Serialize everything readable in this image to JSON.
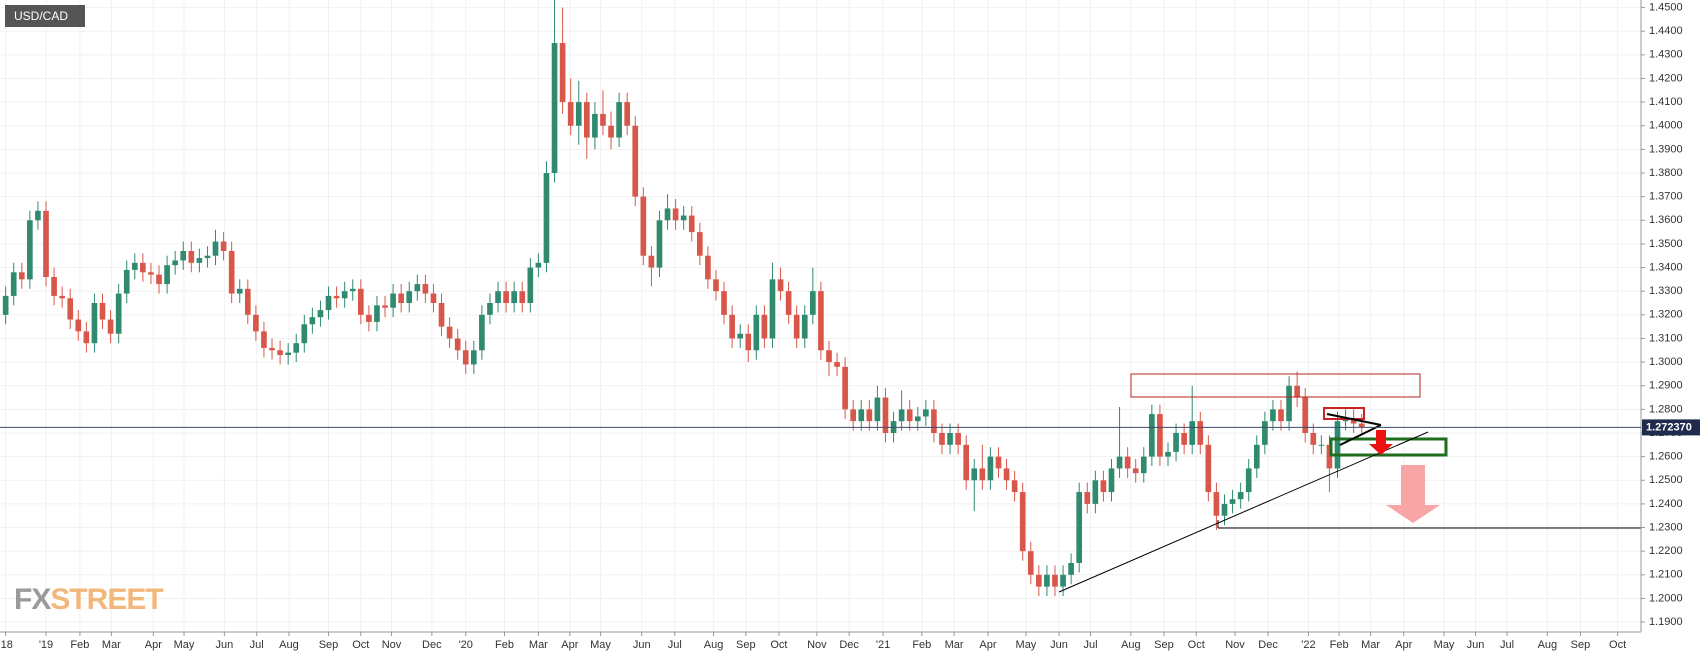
{
  "chart_data": {
    "type": "candlestick",
    "title": "USD/CAD",
    "x": [
      -5,
      -4,
      -3,
      -2,
      -1,
      0,
      1,
      2,
      3,
      4,
      5,
      6,
      7,
      8,
      9,
      10,
      11,
      12,
      13,
      14,
      15,
      16,
      17,
      18,
      19,
      20,
      21,
      22,
      23,
      24,
      25,
      26,
      27,
      28,
      29,
      30,
      31,
      32,
      33,
      34,
      35,
      36,
      37,
      38,
      39,
      40,
      41,
      42,
      43,
      44,
      45,
      46,
      47,
      48,
      49,
      50,
      51,
      52,
      53,
      54,
      55,
      56,
      57,
      58,
      59,
      60,
      61,
      62,
      63,
      64,
      65,
      66,
      67,
      68,
      69,
      70,
      71,
      72,
      73,
      74,
      75,
      76,
      77,
      78,
      79,
      80,
      81,
      82,
      83,
      84,
      85,
      86,
      87,
      88,
      89,
      90,
      91,
      92,
      93,
      94,
      95,
      96,
      97,
      98,
      99,
      100,
      101,
      102,
      103,
      104,
      105,
      106,
      107,
      108,
      109,
      110,
      111,
      112,
      113,
      114,
      115,
      116,
      117,
      118,
      119,
      120,
      121,
      122,
      123,
      124,
      125,
      126,
      127,
      128,
      129,
      130,
      131,
      132,
      133,
      134,
      135,
      136,
      137,
      138,
      139,
      140,
      141,
      142,
      143,
      144,
      145,
      146,
      147,
      148,
      149,
      150,
      151,
      152,
      153,
      154,
      155,
      156,
      157,
      158,
      159,
      160,
      161,
      162,
      163
    ],
    "open": [
      1.32,
      1.328,
      1.338,
      1.335,
      1.36,
      1.364,
      1.336,
      1.328,
      1.327,
      1.318,
      1.313,
      1.308,
      1.325,
      1.318,
      1.312,
      1.329,
      1.339,
      1.342,
      1.338,
      1.337,
      1.333,
      1.341,
      1.343,
      1.347,
      1.342,
      1.344,
      1.345,
      1.351,
      1.347,
      1.329,
      1.331,
      1.32,
      1.313,
      1.306,
      1.305,
      1.303,
      1.304,
      1.308,
      1.316,
      1.319,
      1.322,
      1.328,
      1.327,
      1.33,
      1.331,
      1.32,
      1.317,
      1.324,
      1.323,
      1.329,
      1.325,
      1.33,
      1.333,
      1.329,
      1.325,
      1.315,
      1.31,
      1.305,
      1.299,
      1.305,
      1.32,
      1.325,
      1.33,
      1.325,
      1.33,
      1.325,
      1.34,
      1.342,
      1.38,
      1.435,
      1.41,
      1.4,
      1.41,
      1.395,
      1.405,
      1.4,
      1.395,
      1.41,
      1.4,
      1.37,
      1.345,
      1.34,
      1.36,
      1.365,
      1.36,
      1.362,
      1.355,
      1.345,
      1.335,
      1.33,
      1.32,
      1.31,
      1.312,
      1.305,
      1.32,
      1.31,
      1.335,
      1.33,
      1.32,
      1.31,
      1.32,
      1.33,
      1.305,
      1.3,
      1.298,
      1.28,
      1.275,
      1.28,
      1.275,
      1.285,
      1.27,
      1.275,
      1.28,
      1.275,
      1.277,
      1.28,
      1.27,
      1.265,
      1.27,
      1.265,
      1.25,
      1.255,
      1.25,
      1.26,
      1.255,
      1.25,
      1.245,
      1.22,
      1.21,
      1.205,
      1.21,
      1.205,
      1.21,
      1.215,
      1.245,
      1.24,
      1.25,
      1.245,
      1.255,
      1.26,
      1.255,
      1.253,
      1.26,
      1.278,
      1.26,
      1.262,
      1.27,
      1.265,
      1.275,
      1.265,
      1.245,
      1.235,
      1.24,
      1.242,
      1.245,
      1.255,
      1.265,
      1.275,
      1.28,
      1.275,
      1.29,
      1.285,
      1.27,
      1.265,
      1.265,
      1.255,
      1.275,
      1.276,
      1.274
    ],
    "high": [
      1.332,
      1.342,
      1.342,
      1.364,
      1.368,
      1.368,
      1.34,
      1.332,
      1.331,
      1.322,
      1.317,
      1.329,
      1.329,
      1.322,
      1.333,
      1.343,
      1.346,
      1.346,
      1.342,
      1.341,
      1.345,
      1.347,
      1.351,
      1.351,
      1.348,
      1.349,
      1.356,
      1.355,
      1.351,
      1.335,
      1.335,
      1.324,
      1.317,
      1.31,
      1.309,
      1.308,
      1.312,
      1.32,
      1.323,
      1.326,
      1.332,
      1.332,
      1.334,
      1.335,
      1.335,
      1.324,
      1.328,
      1.328,
      1.333,
      1.333,
      1.334,
      1.337,
      1.337,
      1.333,
      1.329,
      1.319,
      1.314,
      1.309,
      1.309,
      1.324,
      1.329,
      1.334,
      1.334,
      1.334,
      1.334,
      1.344,
      1.346,
      1.385,
      1.466,
      1.45,
      1.42,
      1.419,
      1.414,
      1.41,
      1.415,
      1.406,
      1.414,
      1.414,
      1.404,
      1.374,
      1.349,
      1.364,
      1.371,
      1.369,
      1.366,
      1.366,
      1.359,
      1.349,
      1.339,
      1.334,
      1.324,
      1.316,
      1.316,
      1.324,
      1.324,
      1.342,
      1.34,
      1.334,
      1.324,
      1.324,
      1.34,
      1.334,
      1.309,
      1.304,
      1.302,
      1.284,
      1.284,
      1.284,
      1.29,
      1.289,
      1.279,
      1.288,
      1.284,
      1.281,
      1.284,
      1.284,
      1.274,
      1.274,
      1.274,
      1.269,
      1.259,
      1.265,
      1.264,
      1.264,
      1.259,
      1.254,
      1.249,
      1.224,
      1.214,
      1.214,
      1.214,
      1.214,
      1.219,
      1.249,
      1.249,
      1.254,
      1.254,
      1.259,
      1.281,
      1.264,
      1.259,
      1.264,
      1.282,
      1.282,
      1.266,
      1.274,
      1.274,
      1.29,
      1.279,
      1.269,
      1.249,
      1.244,
      1.246,
      1.249,
      1.259,
      1.269,
      1.279,
      1.284,
      1.284,
      1.294,
      1.296,
      1.289,
      1.274,
      1.269,
      1.269,
      1.279,
      1.28,
      1.28,
      1.278
    ],
    "low": [
      1.316,
      1.324,
      1.331,
      1.331,
      1.356,
      1.332,
      1.324,
      1.323,
      1.314,
      1.309,
      1.304,
      1.304,
      1.314,
      1.308,
      1.308,
      1.325,
      1.335,
      1.334,
      1.333,
      1.329,
      1.329,
      1.337,
      1.339,
      1.338,
      1.338,
      1.34,
      1.341,
      1.343,
      1.325,
      1.325,
      1.316,
      1.309,
      1.302,
      1.301,
      1.299,
      1.299,
      1.3,
      1.304,
      1.312,
      1.315,
      1.318,
      1.323,
      1.323,
      1.326,
      1.316,
      1.313,
      1.313,
      1.319,
      1.319,
      1.321,
      1.321,
      1.326,
      1.325,
      1.321,
      1.311,
      1.306,
      1.301,
      1.295,
      1.295,
      1.301,
      1.316,
      1.321,
      1.321,
      1.321,
      1.321,
      1.321,
      1.336,
      1.338,
      1.376,
      1.405,
      1.396,
      1.392,
      1.386,
      1.39,
      1.396,
      1.39,
      1.391,
      1.396,
      1.366,
      1.341,
      1.332,
      1.336,
      1.356,
      1.356,
      1.356,
      1.351,
      1.341,
      1.331,
      1.326,
      1.316,
      1.306,
      1.306,
      1.3,
      1.301,
      1.306,
      1.306,
      1.326,
      1.316,
      1.306,
      1.306,
      1.316,
      1.301,
      1.294,
      1.294,
      1.276,
      1.271,
      1.271,
      1.271,
      1.271,
      1.266,
      1.266,
      1.271,
      1.271,
      1.271,
      1.273,
      1.266,
      1.261,
      1.261,
      1.261,
      1.246,
      1.237,
      1.246,
      1.246,
      1.251,
      1.246,
      1.241,
      1.216,
      1.206,
      1.201,
      1.201,
      1.201,
      1.201,
      1.206,
      1.211,
      1.236,
      1.236,
      1.241,
      1.241,
      1.251,
      1.251,
      1.249,
      1.249,
      1.256,
      1.256,
      1.256,
      1.258,
      1.261,
      1.261,
      1.261,
      1.241,
      1.229,
      1.231,
      1.236,
      1.238,
      1.241,
      1.251,
      1.261,
      1.271,
      1.271,
      1.271,
      1.281,
      1.266,
      1.261,
      1.261,
      1.245,
      1.251,
      1.271,
      1.27,
      1.27
    ],
    "close": [
      1.328,
      1.338,
      1.335,
      1.36,
      1.364,
      1.336,
      1.328,
      1.327,
      1.318,
      1.313,
      1.308,
      1.325,
      1.318,
      1.312,
      1.329,
      1.339,
      1.342,
      1.338,
      1.337,
      1.333,
      1.341,
      1.343,
      1.347,
      1.342,
      1.344,
      1.345,
      1.351,
      1.347,
      1.329,
      1.331,
      1.32,
      1.313,
      1.306,
      1.305,
      1.303,
      1.304,
      1.308,
      1.316,
      1.319,
      1.322,
      1.328,
      1.327,
      1.33,
      1.331,
      1.32,
      1.317,
      1.324,
      1.323,
      1.329,
      1.325,
      1.33,
      1.333,
      1.329,
      1.325,
      1.315,
      1.31,
      1.305,
      1.299,
      1.305,
      1.32,
      1.325,
      1.33,
      1.325,
      1.33,
      1.325,
      1.34,
      1.342,
      1.38,
      1.435,
      1.41,
      1.4,
      1.41,
      1.395,
      1.405,
      1.4,
      1.395,
      1.41,
      1.4,
      1.37,
      1.345,
      1.34,
      1.36,
      1.365,
      1.36,
      1.362,
      1.355,
      1.345,
      1.335,
      1.33,
      1.32,
      1.31,
      1.312,
      1.305,
      1.32,
      1.31,
      1.335,
      1.33,
      1.32,
      1.31,
      1.32,
      1.33,
      1.305,
      1.3,
      1.298,
      1.28,
      1.275,
      1.28,
      1.275,
      1.285,
      1.27,
      1.275,
      1.28,
      1.275,
      1.277,
      1.28,
      1.27,
      1.265,
      1.27,
      1.265,
      1.25,
      1.255,
      1.25,
      1.26,
      1.255,
      1.25,
      1.245,
      1.22,
      1.21,
      1.205,
      1.21,
      1.205,
      1.21,
      1.215,
      1.245,
      1.24,
      1.25,
      1.245,
      1.255,
      1.26,
      1.255,
      1.253,
      1.26,
      1.278,
      1.26,
      1.262,
      1.27,
      1.265,
      1.275,
      1.265,
      1.245,
      1.235,
      1.24,
      1.242,
      1.245,
      1.255,
      1.265,
      1.275,
      1.28,
      1.275,
      1.29,
      1.285,
      1.27,
      1.265,
      1.265,
      1.255,
      1.275,
      1.276,
      1.274,
      1.2724
    ],
    "up_color": "#2f8a70",
    "down_color": "#d9574a",
    "xlim": [
      -5.7,
      197.6
    ],
    "xticks": [
      {
        "value": -5,
        "label": "'18"
      },
      {
        "value": 0,
        "label": "'19"
      },
      {
        "value": 4.2,
        "label": "Feb"
      },
      {
        "value": 8.1,
        "label": "Mar"
      },
      {
        "value": 13.3,
        "label": "Apr"
      },
      {
        "value": 17.1,
        "label": "May"
      },
      {
        "value": 22.1,
        "label": "Jun"
      },
      {
        "value": 26.1,
        "label": "Jul"
      },
      {
        "value": 30.1,
        "label": "Aug"
      },
      {
        "value": 35,
        "label": "Sep"
      },
      {
        "value": 39,
        "label": "Oct"
      },
      {
        "value": 42.8,
        "label": "Nov"
      },
      {
        "value": 47.8,
        "label": "Dec"
      },
      {
        "value": 52,
        "label": "'20"
      },
      {
        "value": 56.8,
        "label": "Feb"
      },
      {
        "value": 61,
        "label": "Mar"
      },
      {
        "value": 64.9,
        "label": "Apr"
      },
      {
        "value": 68.7,
        "label": "May"
      },
      {
        "value": 73.8,
        "label": "Jun"
      },
      {
        "value": 77.9,
        "label": "Jul"
      },
      {
        "value": 82.7,
        "label": "Aug"
      },
      {
        "value": 86.7,
        "label": "Sep"
      },
      {
        "value": 90.8,
        "label": "Oct"
      },
      {
        "value": 95.5,
        "label": "Nov"
      },
      {
        "value": 99.5,
        "label": "Dec"
      },
      {
        "value": 103.7,
        "label": "'21"
      },
      {
        "value": 108.5,
        "label": "Feb"
      },
      {
        "value": 112.5,
        "label": "Mar"
      },
      {
        "value": 116.7,
        "label": "Apr"
      },
      {
        "value": 121.4,
        "label": "May"
      },
      {
        "value": 125.5,
        "label": "Jun"
      },
      {
        "value": 129.4,
        "label": "Jul"
      },
      {
        "value": 134.4,
        "label": "Aug"
      },
      {
        "value": 138.5,
        "label": "Sep"
      },
      {
        "value": 142.5,
        "label": "Oct"
      },
      {
        "value": 147.3,
        "label": "Nov"
      },
      {
        "value": 151.4,
        "label": "Dec"
      },
      {
        "value": 156.4,
        "label": "'22"
      },
      {
        "value": 160.2,
        "label": "Feb"
      },
      {
        "value": 164.1,
        "label": "Mar"
      },
      {
        "value": 168.2,
        "label": "Apr"
      },
      {
        "value": 173.2,
        "label": "May"
      },
      {
        "value": 177.1,
        "label": "Jun"
      },
      {
        "value": 181,
        "label": "Jul"
      },
      {
        "value": 186,
        "label": "Aug"
      },
      {
        "value": 190.1,
        "label": "Sep"
      },
      {
        "value": 194.7,
        "label": "Oct"
      }
    ],
    "ylim": [
      1.1858,
      1.4532
    ],
    "yticks": [
      {
        "value": 1.19,
        "label": "1.1900"
      },
      {
        "value": 1.2,
        "label": "1.2000"
      },
      {
        "value": 1.21,
        "label": "1.2100"
      },
      {
        "value": 1.22,
        "label": "1.2200"
      },
      {
        "value": 1.23,
        "label": "1.2300"
      },
      {
        "value": 1.24,
        "label": "1.2400"
      },
      {
        "value": 1.25,
        "label": "1.2500"
      },
      {
        "value": 1.26,
        "label": "1.2600"
      },
      {
        "value": 1.27,
        "label": "1.2700"
      },
      {
        "value": 1.28,
        "label": "1.2800"
      },
      {
        "value": 1.29,
        "label": "1.2900"
      },
      {
        "value": 1.3,
        "label": "1.3000"
      },
      {
        "value": 1.31,
        "label": "1.3100"
      },
      {
        "value": 1.32,
        "label": "1.3200"
      },
      {
        "value": 1.33,
        "label": "1.3300"
      },
      {
        "value": 1.34,
        "label": "1.3400"
      },
      {
        "value": 1.35,
        "label": "1.3500"
      },
      {
        "value": 1.36,
        "label": "1.3600"
      },
      {
        "value": 1.37,
        "label": "1.3700"
      },
      {
        "value": 1.38,
        "label": "1.3800"
      },
      {
        "value": 1.39,
        "label": "1.3900"
      },
      {
        "value": 1.4,
        "label": "1.4000"
      },
      {
        "value": 1.41,
        "label": "1.4100"
      },
      {
        "value": 1.42,
        "label": "1.4200"
      },
      {
        "value": 1.43,
        "label": "1.4300"
      },
      {
        "value": 1.44,
        "label": "1.4400"
      },
      {
        "value": 1.45,
        "label": "1.4500"
      }
    ],
    "grid": true,
    "last_price": {
      "value": 1.27237,
      "label": "1.272370"
    }
  },
  "logo": {
    "first": "FX",
    "second": "STREET"
  }
}
